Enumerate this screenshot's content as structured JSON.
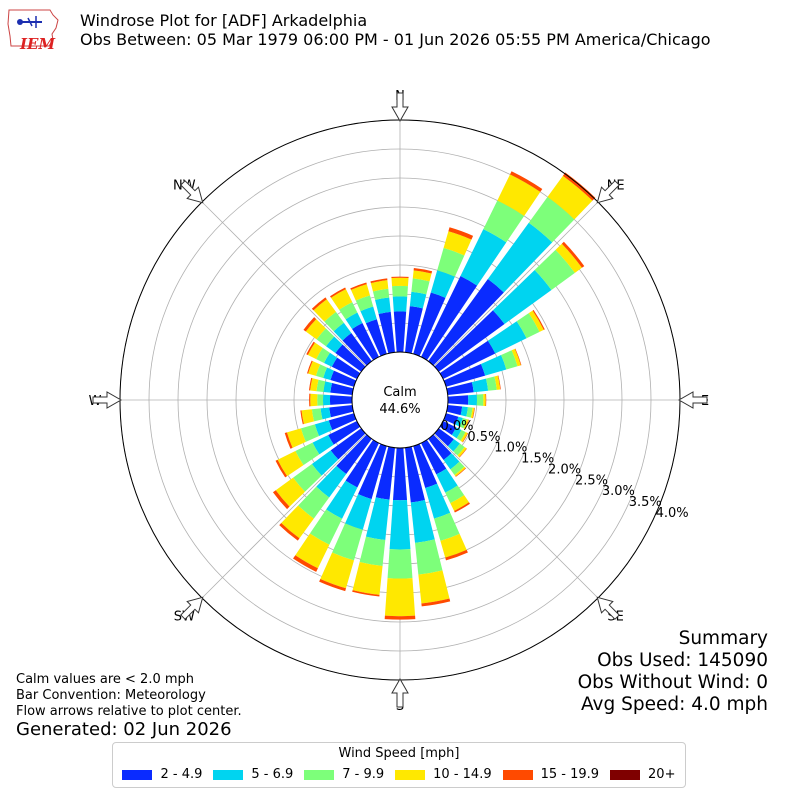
{
  "header": {
    "title": "Windrose Plot for [ADF] Arkadelphia",
    "subtitle": "Obs Between: 05 Mar 1979 06:00 PM - 01 Jun 2026 05:55 PM America/Chicago",
    "logo_text": "IEM"
  },
  "notes": {
    "line1": "Calm values are < 2.0 mph",
    "line2": "Bar Convention: Meteorology",
    "line3": "Flow arrows relative to plot center.",
    "generated": "Generated: 02 Jun 2026"
  },
  "summary": {
    "heading": "Summary",
    "obs_used": "Obs Used: 145090",
    "obs_without_wind": "Obs Without Wind: 0",
    "avg_speed": "Avg Speed: 4.0 mph"
  },
  "legend": {
    "title": "Wind Speed [mph]",
    "items": [
      {
        "label": "2 - 4.9",
        "color": "#0a2bff"
      },
      {
        "label": "5 - 6.9",
        "color": "#00d4f0"
      },
      {
        "label": "7 - 9.9",
        "color": "#7dff7a"
      },
      {
        "label": "10 - 14.9",
        "color": "#ffe800"
      },
      {
        "label": "15 - 19.9",
        "color": "#ff4a00"
      },
      {
        "label": "20+",
        "color": "#7f0000"
      }
    ]
  },
  "chart_data": {
    "type": "windrose",
    "calm_label": "Calm",
    "calm_value": "44.6%",
    "radial_unit": "%",
    "radial_ticks": [
      "0.0%",
      "0.5%",
      "1.0%",
      "1.5%",
      "2.0%",
      "2.5%",
      "3.0%",
      "3.5%",
      "4.0%"
    ],
    "radial_max": 4.0,
    "grid": true,
    "compass_labels": [
      "N",
      "NE",
      "E",
      "SE",
      "S",
      "SW",
      "W",
      "NW"
    ],
    "direction_step_deg": 10,
    "directions_deg": [
      0,
      10,
      20,
      30,
      40,
      50,
      60,
      70,
      80,
      90,
      100,
      110,
      120,
      130,
      140,
      150,
      160,
      170,
      180,
      190,
      200,
      210,
      220,
      230,
      240,
      250,
      260,
      270,
      280,
      290,
      300,
      310,
      320,
      330,
      340,
      350
    ],
    "speed_bins": [
      "2 - 4.9",
      "5 - 6.9",
      "7 - 9.9",
      "10 - 14.9",
      "15 - 19.9",
      "20+"
    ],
    "colors": [
      "#0a2bff",
      "#00d4f0",
      "#7dff7a",
      "#ffe800",
      "#ff4a00",
      "#7f0000"
    ],
    "cumulative": [
      [
        0.7,
        0.96,
        1.14,
        1.28,
        1.3,
        1.3
      ],
      [
        0.8,
        1.05,
        1.28,
        1.42,
        1.46,
        1.46
      ],
      [
        1.1,
        1.5,
        1.9,
        2.2,
        2.27,
        2.27
      ],
      [
        1.55,
        2.45,
        3.0,
        3.5,
        3.56,
        3.56
      ],
      [
        1.75,
        2.95,
        3.5,
        3.95,
        4.02,
        4.02
      ],
      [
        1.4,
        2.4,
        2.9,
        3.05,
        3.1,
        3.1
      ],
      [
        1.0,
        1.6,
        1.85,
        1.93,
        1.95,
        1.95
      ],
      [
        0.7,
        1.08,
        1.28,
        1.34,
        1.35,
        1.35
      ],
      [
        0.45,
        0.7,
        0.85,
        0.91,
        0.92,
        0.92
      ],
      [
        0.35,
        0.5,
        0.61,
        0.65,
        0.66,
        0.66
      ],
      [
        0.25,
        0.35,
        0.43,
        0.46,
        0.47,
        0.47
      ],
      [
        0.22,
        0.3,
        0.37,
        0.4,
        0.41,
        0.41
      ],
      [
        0.25,
        0.35,
        0.43,
        0.47,
        0.48,
        0.48
      ],
      [
        0.32,
        0.45,
        0.55,
        0.59,
        0.6,
        0.6
      ],
      [
        0.45,
        0.65,
        0.77,
        0.8,
        0.81,
        0.81
      ],
      [
        0.6,
        0.95,
        1.15,
        1.3,
        1.33,
        1.33
      ],
      [
        0.75,
        1.3,
        1.7,
        2.0,
        2.05,
        2.05
      ],
      [
        0.95,
        1.65,
        2.2,
        2.7,
        2.75,
        2.75
      ],
      [
        0.9,
        1.75,
        2.25,
        2.9,
        2.96,
        2.96
      ],
      [
        0.9,
        1.6,
        2.05,
        2.55,
        2.58,
        2.58
      ],
      [
        0.95,
        1.5,
        2.05,
        2.55,
        2.6,
        2.6
      ],
      [
        0.85,
        1.45,
        1.95,
        2.4,
        2.47,
        2.47
      ],
      [
        0.75,
        1.25,
        1.7,
        2.12,
        2.17,
        2.17
      ],
      [
        0.65,
        1.05,
        1.45,
        1.82,
        1.88,
        1.88
      ],
      [
        0.55,
        0.85,
        1.18,
        1.52,
        1.56,
        1.56
      ],
      [
        0.45,
        0.7,
        0.95,
        1.2,
        1.24,
        1.24
      ],
      [
        0.4,
        0.55,
        0.7,
        0.88,
        0.9,
        0.9
      ],
      [
        0.38,
        0.5,
        0.6,
        0.72,
        0.74,
        0.74
      ],
      [
        0.38,
        0.5,
        0.62,
        0.73,
        0.75,
        0.75
      ],
      [
        0.42,
        0.55,
        0.68,
        0.82,
        0.84,
        0.84
      ],
      [
        0.48,
        0.63,
        0.78,
        0.94,
        0.97,
        0.97
      ],
      [
        0.55,
        0.75,
        0.95,
        1.18,
        1.23,
        1.23
      ],
      [
        0.6,
        0.82,
        1.05,
        1.32,
        1.36,
        1.36
      ],
      [
        0.65,
        0.85,
        1.05,
        1.3,
        1.33,
        1.33
      ],
      [
        0.62,
        0.85,
        1.05,
        1.25,
        1.28,
        1.28
      ],
      [
        0.7,
        0.95,
        1.1,
        1.25,
        1.28,
        1.28
      ]
    ]
  }
}
